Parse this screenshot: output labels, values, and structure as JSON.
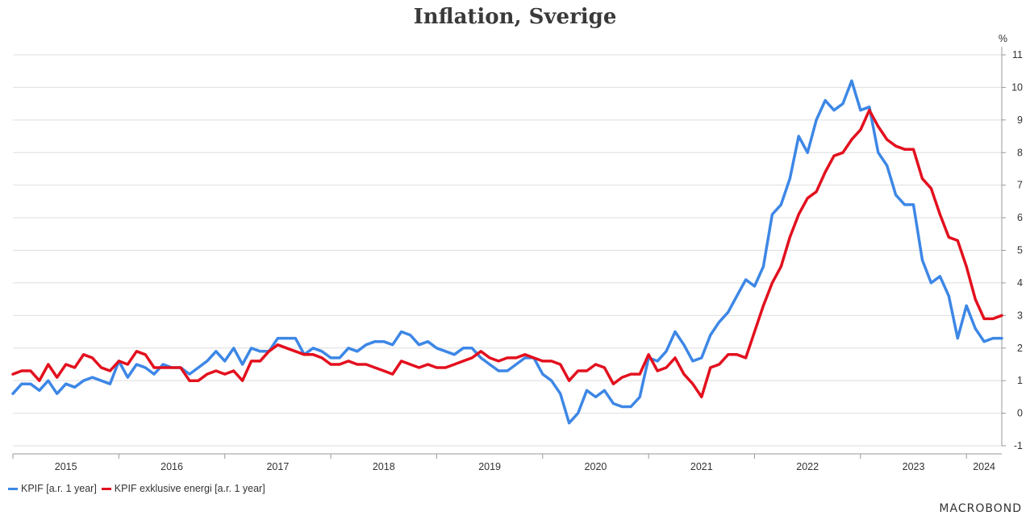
{
  "chart_data": {
    "type": "line",
    "title": "Inflation, Sverige",
    "ylabel": "%",
    "ylim": [
      -1,
      11
    ],
    "yticks": [
      -1,
      0,
      1,
      2,
      3,
      4,
      5,
      6,
      7,
      8,
      9,
      10,
      11
    ],
    "xticks": [
      "2015",
      "2016",
      "2017",
      "2018",
      "2019",
      "2020",
      "2021",
      "2022",
      "2023",
      "2024"
    ],
    "x_start": "2015-01",
    "x_end": "2024-04",
    "grid": true,
    "legend_position": "bottom-left",
    "colors": {
      "kpif": "#3d87e6",
      "kpif_ex": "#e3101e"
    },
    "series": [
      {
        "name": "KPIF [a.r. 1 year]",
        "values": [
          0.6,
          0.9,
          0.9,
          0.7,
          1.0,
          0.6,
          0.9,
          0.8,
          1.0,
          1.1,
          1.0,
          0.9,
          1.6,
          1.1,
          1.5,
          1.4,
          1.2,
          1.5,
          1.4,
          1.4,
          1.2,
          1.4,
          1.6,
          1.9,
          1.6,
          2.0,
          1.5,
          2.0,
          1.9,
          1.9,
          2.3,
          2.3,
          2.3,
          1.8,
          2.0,
          1.9,
          1.7,
          1.7,
          2.0,
          1.9,
          2.1,
          2.2,
          2.2,
          2.1,
          2.5,
          2.4,
          2.1,
          2.2,
          2.0,
          1.9,
          1.8,
          2.0,
          2.0,
          1.7,
          1.5,
          1.3,
          1.3,
          1.5,
          1.7,
          1.7,
          1.2,
          1.0,
          0.6,
          -0.3,
          0.0,
          0.7,
          0.5,
          0.7,
          0.3,
          0.2,
          0.2,
          0.5,
          1.7,
          1.6,
          1.9,
          2.5,
          2.1,
          1.6,
          1.7,
          2.4,
          2.8,
          3.1,
          3.6,
          4.1,
          3.9,
          4.5,
          6.1,
          6.4,
          7.2,
          8.5,
          8.0,
          9.0,
          9.6,
          9.3,
          9.5,
          10.2,
          9.3,
          9.4,
          8.0,
          7.6,
          6.7,
          6.4,
          6.4,
          4.7,
          4.0,
          4.2,
          3.6,
          2.3,
          3.3,
          2.6,
          2.2,
          2.3,
          2.3
        ]
      },
      {
        "name": "KPIF exklusive energi [a.r. 1 year]",
        "values": [
          1.2,
          1.3,
          1.3,
          1.0,
          1.5,
          1.1,
          1.5,
          1.4,
          1.8,
          1.7,
          1.4,
          1.3,
          1.6,
          1.5,
          1.9,
          1.8,
          1.4,
          1.4,
          1.4,
          1.4,
          1.0,
          1.0,
          1.2,
          1.3,
          1.2,
          1.3,
          1.0,
          1.6,
          1.6,
          1.9,
          2.1,
          2.0,
          1.9,
          1.8,
          1.8,
          1.7,
          1.5,
          1.5,
          1.6,
          1.5,
          1.5,
          1.4,
          1.3,
          1.2,
          1.6,
          1.5,
          1.4,
          1.5,
          1.4,
          1.4,
          1.5,
          1.6,
          1.7,
          1.9,
          1.7,
          1.6,
          1.7,
          1.7,
          1.8,
          1.7,
          1.6,
          1.6,
          1.5,
          1.0,
          1.3,
          1.3,
          1.5,
          1.4,
          0.9,
          1.1,
          1.2,
          1.2,
          1.8,
          1.3,
          1.4,
          1.7,
          1.2,
          0.9,
          0.5,
          1.4,
          1.5,
          1.8,
          1.8,
          1.7,
          2.5,
          3.3,
          4.0,
          4.5,
          5.4,
          6.1,
          6.6,
          6.8,
          7.4,
          7.9,
          8.0,
          8.4,
          8.7,
          9.3,
          8.8,
          8.4,
          8.2,
          8.1,
          8.1,
          7.2,
          6.9,
          6.1,
          5.4,
          5.3,
          4.5,
          3.5,
          2.9,
          2.9,
          3.0
        ]
      }
    ]
  },
  "legend": {
    "kpif": "KPIF [a.r. 1 year]",
    "kpif_ex": "KPIF exklusive energi [a.r. 1 year]"
  },
  "brand": "MACROBOND"
}
